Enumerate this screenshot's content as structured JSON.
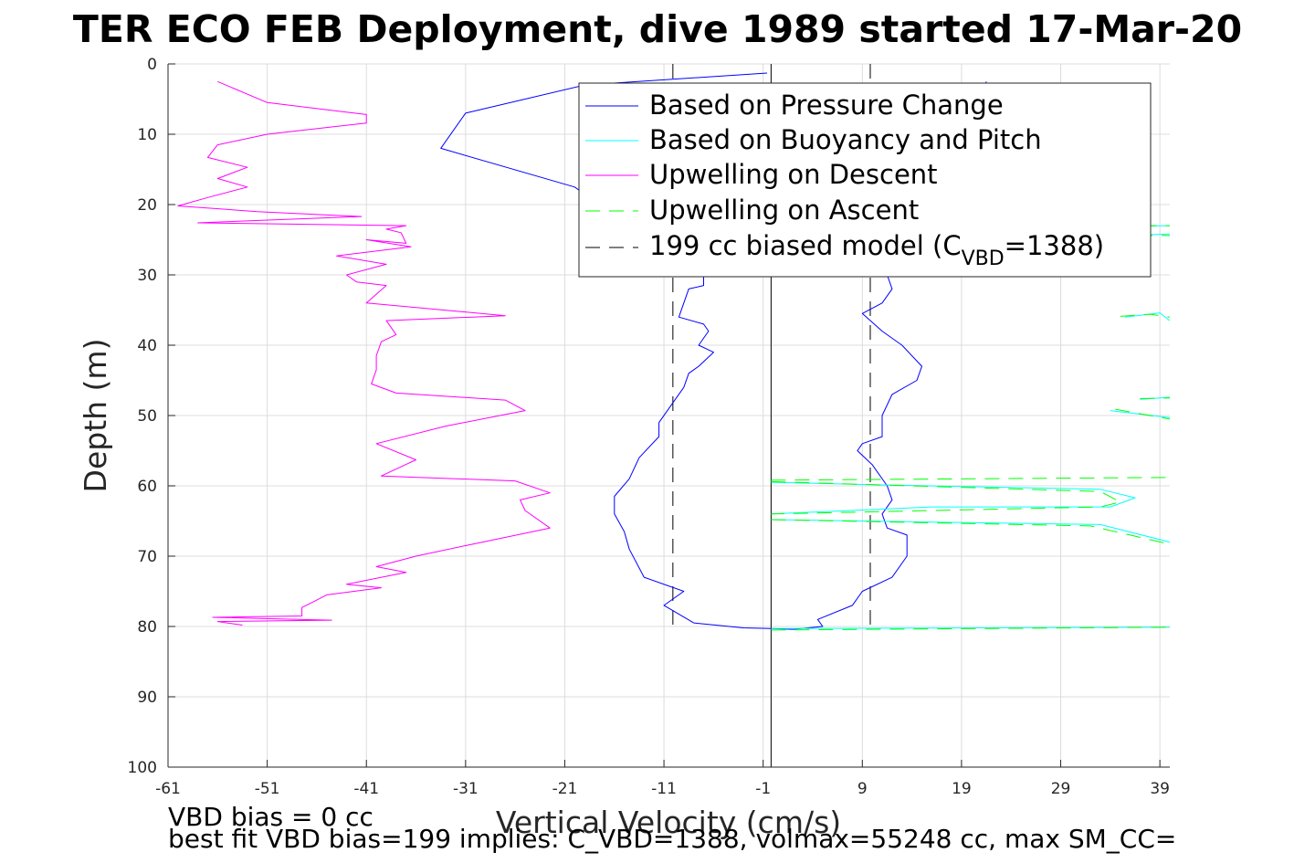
{
  "chart_data": {
    "type": "line",
    "title": "TER ECO FEB Deployment, dive 1989 started 17-Mar-20",
    "xlabel": "Vertical Velocity (cm/s)",
    "ylabel": "Depth (m)",
    "xlim": [
      -61,
      40
    ],
    "ylim": [
      0,
      100
    ],
    "y_reversed": true,
    "grid": true,
    "x_ticks": [
      "-61",
      "-51",
      "-41",
      "-31",
      "-21",
      "-11",
      "-1",
      "9",
      "19",
      "29",
      "39"
    ],
    "y_ticks": [
      "0",
      "10",
      "20",
      "30",
      "40",
      "50",
      "60",
      "70",
      "80",
      "90",
      "100"
    ],
    "legend_position": "top-right",
    "legend": {
      "pressure": "Based on Pressure Change",
      "buoyancy": "Based on Buoyancy and Pitch",
      "upwell_descent": "Upwelling on Descent",
      "upwell_ascent": "Upwelling on Ascent",
      "model_prefix": "199 cc biased model (C",
      "model_sub": "VBD",
      "model_suffix": "=1388)"
    },
    "colors": {
      "pressure": "#0000ff",
      "buoyancy": "#00ffff",
      "upwell_descent": "#ff00ff",
      "upwell_ascent": "#00ff00",
      "model": "#000000",
      "grid": "#dcdcdc"
    },
    "model_lines_x": [
      -10.1,
      9.8
    ],
    "zero_line_x": -0.2,
    "series": [
      {
        "key": "pressure",
        "points": [
          [
            -0.6,
            1.3
          ],
          [
            -19,
            3
          ],
          [
            -31,
            7
          ],
          [
            -33.5,
            12
          ],
          [
            -20,
            17.5
          ],
          [
            -18,
            19.5
          ],
          [
            -11,
            24
          ],
          [
            -8,
            27
          ],
          [
            -7,
            30
          ],
          [
            -7,
            31.5
          ],
          [
            -8.5,
            32
          ],
          [
            -9.5,
            36
          ],
          [
            -7,
            37
          ],
          [
            -6.5,
            38
          ],
          [
            -7.5,
            40
          ],
          [
            -6,
            41
          ],
          [
            -7.5,
            43
          ],
          [
            -8.5,
            44
          ],
          [
            -9,
            46
          ],
          [
            -10,
            48
          ],
          [
            -11.5,
            51
          ],
          [
            -11.5,
            53
          ],
          [
            -13.5,
            56
          ],
          [
            -14.5,
            59
          ],
          [
            -16,
            61.5
          ],
          [
            -16,
            64
          ],
          [
            -15,
            66.5
          ],
          [
            -14.5,
            69
          ],
          [
            -13,
            73
          ],
          [
            -9,
            75
          ],
          [
            -11,
            77
          ],
          [
            -8,
            79.5
          ],
          [
            -3,
            80.2
          ],
          [
            -0.2,
            80.3
          ],
          [
            2,
            80.4
          ],
          [
            5,
            80
          ],
          [
            4.5,
            79
          ],
          [
            8,
            77
          ],
          [
            9,
            75
          ],
          [
            12,
            73
          ],
          [
            13.5,
            70
          ],
          [
            13.5,
            67
          ],
          [
            11.5,
            66
          ],
          [
            11,
            64
          ],
          [
            12,
            62
          ],
          [
            11.5,
            60
          ],
          [
            10,
            57
          ],
          [
            8.5,
            55
          ],
          [
            9,
            54
          ],
          [
            11,
            53
          ],
          [
            11,
            50
          ],
          [
            12,
            47
          ],
          [
            14.5,
            45
          ],
          [
            15,
            43
          ],
          [
            13,
            40
          ],
          [
            11,
            38
          ],
          [
            9,
            35.5
          ],
          [
            11,
            34
          ],
          [
            12,
            32
          ],
          [
            11.5,
            30
          ],
          [
            13,
            26
          ],
          [
            14,
            22
          ],
          [
            17,
            18
          ],
          [
            18,
            12
          ],
          [
            21,
            5
          ],
          [
            21.5,
            2.5
          ]
        ]
      },
      {
        "key": "upwell_descent",
        "points": [
          [
            -56,
            2.5
          ],
          [
            -51,
            5.5
          ],
          [
            -41,
            7.2
          ],
          [
            -41,
            8.4
          ],
          [
            -51,
            10
          ],
          [
            -56,
            11.5
          ],
          [
            -57,
            13.3
          ],
          [
            -53,
            14.7
          ],
          [
            -56,
            16.3
          ],
          [
            -53,
            17.5
          ],
          [
            -57,
            19
          ],
          [
            -60,
            20.2
          ],
          [
            -52,
            21
          ],
          [
            -41.5,
            21.7
          ],
          [
            -58,
            22.6
          ],
          [
            -37,
            23
          ],
          [
            -39,
            23.5
          ],
          [
            -37.5,
            24
          ],
          [
            -37,
            25.5
          ],
          [
            -41,
            25
          ],
          [
            -36.5,
            26
          ],
          [
            -44,
            27.3
          ],
          [
            -39,
            28.5
          ],
          [
            -43,
            30
          ],
          [
            -42,
            31
          ],
          [
            -39,
            31.5
          ],
          [
            -41,
            34
          ],
          [
            -27,
            35.8
          ],
          [
            -39,
            36.5
          ],
          [
            -38,
            38.5
          ],
          [
            -39.5,
            39.5
          ],
          [
            -40,
            41.5
          ],
          [
            -40,
            43.5
          ],
          [
            -40.5,
            45.5
          ],
          [
            -38,
            46.8
          ],
          [
            -27,
            47.8
          ],
          [
            -25,
            49.3
          ],
          [
            -33,
            51.5
          ],
          [
            -40,
            54
          ],
          [
            -36,
            56.3
          ],
          [
            -39.5,
            58.6
          ],
          [
            -26,
            59.3
          ],
          [
            -22.5,
            61
          ],
          [
            -25.5,
            62
          ],
          [
            -25,
            63.5
          ],
          [
            -22.5,
            66
          ],
          [
            -31,
            68.5
          ],
          [
            -36,
            70
          ],
          [
            -40,
            71.5
          ],
          [
            -37,
            72.3
          ],
          [
            -43,
            74
          ],
          [
            -39.5,
            74.5
          ],
          [
            -45,
            75.5
          ],
          [
            -46.5,
            76.6
          ],
          [
            -47.5,
            77.3
          ],
          [
            -47.5,
            78.5
          ],
          [
            -56.5,
            78.7
          ],
          [
            -44.5,
            79.1
          ],
          [
            -56,
            79.3
          ],
          [
            -53.5,
            79.8
          ]
        ]
      },
      {
        "key": "buoyancy",
        "segments": [
          [
            [
              32,
              23.2
            ],
            [
              40,
              23
            ]
          ],
          [
            [
              33,
              24.5
            ],
            [
              40,
              24.2
            ]
          ],
          [
            [
              35.5,
              36
            ],
            [
              39,
              35.4
            ],
            [
              40,
              36.5
            ]
          ],
          [
            [
              37,
              47.7
            ],
            [
              40,
              47.4
            ]
          ],
          [
            [
              34,
              49.3
            ],
            [
              40,
              50.3
            ]
          ],
          [
            [
              -0.2,
              59.5
            ],
            [
              9,
              59.8
            ],
            [
              33,
              60.5
            ],
            [
              36.5,
              61.7
            ],
            [
              34,
              63
            ],
            [
              16,
              63
            ],
            [
              -0.2,
              64
            ]
          ],
          [
            [
              -0.2,
              64.8
            ],
            [
              33,
              65.5
            ],
            [
              40,
              68
            ]
          ],
          [
            [
              -0.2,
              80.3
            ],
            [
              40,
              80.1
            ]
          ]
        ]
      },
      {
        "key": "upwell_ascent",
        "segments": [
          [
            [
              30,
              23
            ],
            [
              40,
              23
            ]
          ],
          [
            [
              32,
              24.4
            ],
            [
              40,
              24.4
            ]
          ],
          [
            [
              35,
              35.9
            ],
            [
              38,
              35.6
            ],
            [
              40,
              36
            ]
          ],
          [
            [
              37,
              47.6
            ],
            [
              40,
              47.5
            ]
          ],
          [
            [
              34.5,
              49.1
            ],
            [
              40,
              50.5
            ]
          ],
          [
            [
              -0.2,
              59.2
            ],
            [
              40,
              58.8
            ]
          ],
          [
            [
              -0.2,
              59.4
            ],
            [
              33,
              60.8
            ],
            [
              35,
              62.3
            ],
            [
              33,
              63
            ],
            [
              -0.2,
              64
            ]
          ],
          [
            [
              -0.2,
              64.8
            ],
            [
              32,
              65.7
            ],
            [
              40,
              68.3
            ]
          ],
          [
            [
              -0.2,
              80.5
            ],
            [
              40,
              80.1
            ]
          ]
        ]
      }
    ]
  },
  "footer": {
    "line1": "VBD bias = 0 cc",
    "line2": "best fit VBD bias=199 implies: C_VBD=1388, volmax=55248 cc, max SM_CC="
  }
}
